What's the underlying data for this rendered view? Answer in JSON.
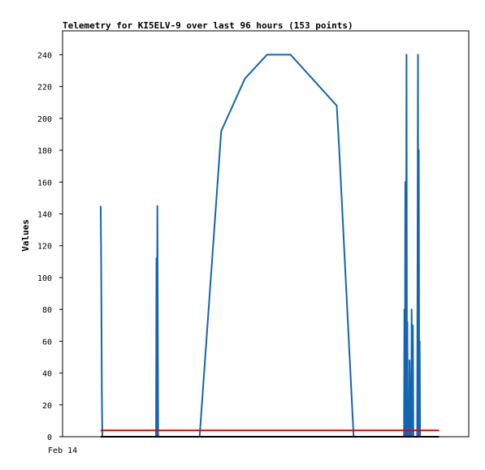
{
  "chart_data": {
    "type": "line",
    "title": "Telemetry for KI5ELV-9 over last 96 hours (153 points)",
    "xlabel": "",
    "ylabel": "Values",
    "x_tick_labels": [
      "Feb 14"
    ],
    "ylim": [
      0,
      255
    ],
    "y_ticks": [
      0,
      20,
      40,
      60,
      80,
      100,
      120,
      140,
      160,
      180,
      200,
      220,
      240
    ],
    "xlim": [
      0,
      96
    ],
    "grid": false,
    "legend": "none",
    "series": [
      {
        "color": "#1464b4",
        "x": [
          9.0,
          9.1,
          9.2,
          9.3,
          9.4,
          9.5,
          9.6,
          22.1,
          22.2,
          22.3,
          22.4,
          22.5,
          22.6,
          22.7,
          32.4,
          37.5,
          43.1,
          48.3,
          53.9,
          64.8,
          65.4,
          68.8,
          80.7,
          80.8,
          80.9,
          81.0,
          81.1,
          81.2,
          81.3,
          81.4,
          81.5,
          81.6,
          81.7,
          81.8,
          81.9,
          82.0,
          82.2,
          82.4,
          82.5,
          82.6,
          82.7,
          82.8,
          82.9,
          83.0,
          83.1,
          83.2,
          83.3,
          83.4,
          83.6,
          83.8,
          83.9,
          84.0,
          84.1,
          84.2,
          84.3,
          84.4,
          84.5,
          84.6,
          84.7,
          84.8
        ],
        "y": [
          145,
          120,
          73,
          25,
          0,
          0,
          0,
          0,
          112,
          0,
          145,
          73,
          0,
          0,
          0,
          192,
          225,
          240,
          240,
          208,
          180,
          0,
          0,
          80,
          0,
          160,
          0,
          120,
          240,
          0,
          72,
          0,
          15,
          0,
          0,
          48,
          0,
          0,
          80,
          40,
          0,
          70,
          0,
          0,
          0,
          0,
          0,
          0,
          0,
          0,
          120,
          240,
          0,
          180,
          0,
          60,
          0,
          0,
          0,
          0
        ]
      },
      {
        "color": "#e00000",
        "x": [
          9.0,
          89.0
        ],
        "y": [
          4,
          4
        ]
      },
      {
        "color": "#000000",
        "x": [
          9.0,
          89.0
        ],
        "y": [
          0,
          0
        ]
      }
    ]
  }
}
